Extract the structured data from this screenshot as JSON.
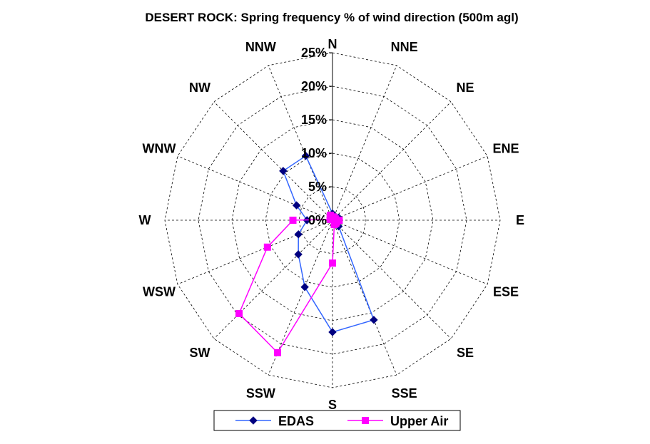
{
  "chart_data": {
    "type": "radar",
    "title": "DESERT ROCK: Spring  frequency % of wind direction (500m agl)",
    "directions": [
      "N",
      "NNE",
      "NE",
      "ENE",
      "E",
      "ESE",
      "SE",
      "SSE",
      "S",
      "SSW",
      "SW",
      "WSW",
      "W",
      "WNW",
      "NW",
      "NNW"
    ],
    "radial_ticks": [
      "0%",
      "5%",
      "10%",
      "15%",
      "20%",
      "25%"
    ],
    "rlim": [
      0,
      25
    ],
    "grid": true,
    "legend_position": "bottom",
    "series": [
      {
        "name": "EDAS",
        "color": "#000080",
        "line_color": "#3366FF",
        "marker": "diamond",
        "values": [
          1.0,
          0.3,
          0.4,
          1.0,
          0.5,
          0.8,
          1.3,
          16.1,
          16.7,
          10.8,
          7.2,
          5.5,
          3.8,
          5.8,
          10.4,
          10.4
        ]
      },
      {
        "name": "Upper Air",
        "color": "#FF00FF",
        "line_color": "#FF00FF",
        "marker": "square",
        "values": [
          0.5,
          0.5,
          0.3,
          0.5,
          1.0,
          0.7,
          0.7,
          0.7,
          6.4,
          21.4,
          19.7,
          10.5,
          5.9,
          0.3,
          0.5,
          0.8
        ]
      }
    ]
  }
}
